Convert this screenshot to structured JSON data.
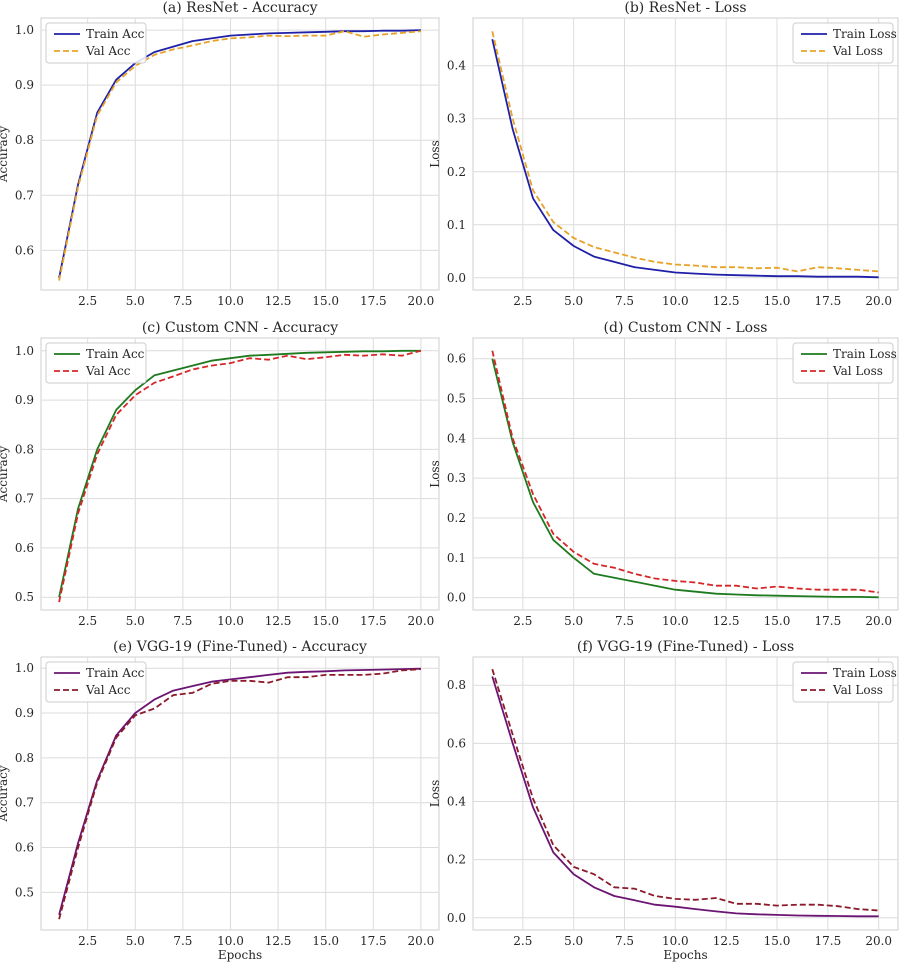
{
  "chart_data": [
    {
      "type": "line",
      "title": "(a) ResNet - Accuracy",
      "xlabel": "",
      "ylabel": "Accuracy",
      "xlim": [
        0.05,
        20.95
      ],
      "ylim": [
        0.528,
        1.022
      ],
      "xticks": [
        "2.5",
        "5.0",
        "7.5",
        "10.0",
        "12.5",
        "15.0",
        "17.5",
        "20.0"
      ],
      "yticks": [
        "0.6",
        "0.7",
        "0.8",
        "0.9",
        "1.0"
      ],
      "legend": "upper-left",
      "grid": true,
      "x": [
        1,
        2,
        3,
        4,
        5,
        6,
        7,
        8,
        9,
        10,
        11,
        12,
        13,
        14,
        15,
        16,
        17,
        18,
        19,
        20
      ],
      "series": [
        {
          "name": "Train Acc",
          "color": "#1f1fa8",
          "dash": "solid",
          "values": [
            0.55,
            0.72,
            0.85,
            0.91,
            0.94,
            0.96,
            0.97,
            0.98,
            0.985,
            0.99,
            0.992,
            0.994,
            0.995,
            0.996,
            0.997,
            0.998,
            0.998,
            0.999,
            0.999,
            1.0
          ]
        },
        {
          "name": "Val Acc",
          "color": "#e8a227",
          "dash": "dashed",
          "values": [
            0.545,
            0.715,
            0.845,
            0.905,
            0.935,
            0.955,
            0.965,
            0.972,
            0.98,
            0.985,
            0.987,
            0.99,
            0.989,
            0.99,
            0.99,
            0.998,
            0.988,
            0.992,
            0.995,
            0.998
          ]
        }
      ]
    },
    {
      "type": "line",
      "title": "(b) ResNet - Loss",
      "xlabel": "",
      "ylabel": "Loss",
      "xlim": [
        0.05,
        20.95
      ],
      "ylim": [
        -0.023,
        0.49
      ],
      "xticks": [
        "2.5",
        "5.0",
        "7.5",
        "10.0",
        "12.5",
        "15.0",
        "17.5",
        "20.0"
      ],
      "yticks": [
        "0.0",
        "0.1",
        "0.2",
        "0.3",
        "0.4"
      ],
      "legend": "upper-right",
      "grid": true,
      "x": [
        1,
        2,
        3,
        4,
        5,
        6,
        7,
        8,
        9,
        10,
        11,
        12,
        13,
        14,
        15,
        16,
        17,
        18,
        19,
        20
      ],
      "series": [
        {
          "name": "Train Loss",
          "color": "#1f1fa8",
          "dash": "solid",
          "values": [
            0.45,
            0.28,
            0.15,
            0.09,
            0.06,
            0.04,
            0.03,
            0.02,
            0.015,
            0.01,
            0.008,
            0.006,
            0.005,
            0.004,
            0.003,
            0.003,
            0.002,
            0.002,
            0.002,
            0.001
          ]
        },
        {
          "name": "Val Loss",
          "color": "#e8a227",
          "dash": "dashed",
          "values": [
            0.465,
            0.3,
            0.165,
            0.105,
            0.075,
            0.058,
            0.048,
            0.038,
            0.03,
            0.025,
            0.023,
            0.02,
            0.02,
            0.018,
            0.019,
            0.012,
            0.02,
            0.018,
            0.015,
            0.012
          ]
        }
      ]
    },
    {
      "type": "line",
      "title": "(c) Custom CNN - Accuracy",
      "xlabel": "",
      "ylabel": "Accuracy",
      "xlim": [
        0.05,
        20.95
      ],
      "ylim": [
        0.474,
        1.026
      ],
      "xticks": [
        "2.5",
        "5.0",
        "7.5",
        "10.0",
        "12.5",
        "15.0",
        "17.5",
        "20.0"
      ],
      "yticks": [
        "0.5",
        "0.6",
        "0.7",
        "0.8",
        "0.9",
        "1.0"
      ],
      "legend": "upper-left",
      "grid": true,
      "x": [
        1,
        2,
        3,
        4,
        5,
        6,
        7,
        8,
        9,
        10,
        11,
        12,
        13,
        14,
        15,
        16,
        17,
        18,
        19,
        20
      ],
      "series": [
        {
          "name": "Train Acc",
          "color": "#1e7a1e",
          "dash": "solid",
          "values": [
            0.5,
            0.68,
            0.8,
            0.88,
            0.92,
            0.95,
            0.96,
            0.97,
            0.98,
            0.985,
            0.99,
            0.992,
            0.994,
            0.996,
            0.997,
            0.998,
            0.999,
            0.999,
            1.0,
            1.0
          ]
        },
        {
          "name": "Val Acc",
          "color": "#d62728",
          "dash": "dashed",
          "values": [
            0.49,
            0.67,
            0.79,
            0.87,
            0.91,
            0.935,
            0.948,
            0.962,
            0.97,
            0.975,
            0.985,
            0.982,
            0.99,
            0.983,
            0.987,
            0.992,
            0.99,
            0.993,
            0.99,
            1.0
          ]
        }
      ]
    },
    {
      "type": "line",
      "title": "(d) Custom CNN - Loss",
      "xlabel": "",
      "ylabel": "Loss",
      "xlim": [
        0.05,
        20.95
      ],
      "ylim": [
        -0.031,
        0.652
      ],
      "xticks": [
        "2.5",
        "5.0",
        "7.5",
        "10.0",
        "12.5",
        "15.0",
        "17.5",
        "20.0"
      ],
      "yticks": [
        "0.0",
        "0.1",
        "0.2",
        "0.3",
        "0.4",
        "0.5",
        "0.6"
      ],
      "legend": "upper-right",
      "grid": true,
      "x": [
        1,
        2,
        3,
        4,
        5,
        6,
        7,
        8,
        9,
        10,
        11,
        12,
        13,
        14,
        15,
        16,
        17,
        18,
        19,
        20
      ],
      "series": [
        {
          "name": "Train Loss",
          "color": "#1e7a1e",
          "dash": "solid",
          "values": [
            0.6,
            0.39,
            0.24,
            0.145,
            0.1,
            0.06,
            0.05,
            0.04,
            0.03,
            0.02,
            0.015,
            0.01,
            0.008,
            0.006,
            0.005,
            0.004,
            0.003,
            0.002,
            0.002,
            0.001
          ]
        },
        {
          "name": "Val Loss",
          "color": "#d62728",
          "dash": "dashed",
          "values": [
            0.62,
            0.4,
            0.26,
            0.16,
            0.115,
            0.085,
            0.075,
            0.06,
            0.048,
            0.042,
            0.038,
            0.03,
            0.03,
            0.023,
            0.028,
            0.023,
            0.02,
            0.02,
            0.02,
            0.013
          ]
        }
      ]
    },
    {
      "type": "line",
      "title": "(e) VGG-19 (Fine-Tuned) - Accuracy",
      "xlabel": "Epochs",
      "ylabel": "Accuracy",
      "xlim": [
        0.05,
        20.95
      ],
      "ylim": [
        0.416,
        1.025
      ],
      "xticks": [
        "2.5",
        "5.0",
        "7.5",
        "10.0",
        "12.5",
        "15.0",
        "17.5",
        "20.0"
      ],
      "yticks": [
        "0.5",
        "0.6",
        "0.7",
        "0.8",
        "0.9",
        "1.0"
      ],
      "legend": "upper-left",
      "grid": true,
      "x": [
        1,
        2,
        3,
        4,
        5,
        6,
        7,
        8,
        9,
        10,
        11,
        12,
        13,
        14,
        15,
        16,
        17,
        18,
        19,
        20
      ],
      "series": [
        {
          "name": "Train Acc",
          "color": "#6b1473",
          "dash": "solid",
          "values": [
            0.45,
            0.61,
            0.75,
            0.85,
            0.9,
            0.93,
            0.95,
            0.96,
            0.97,
            0.975,
            0.98,
            0.985,
            0.99,
            0.992,
            0.993,
            0.995,
            0.996,
            0.997,
            0.998,
            0.999
          ]
        },
        {
          "name": "Val Acc",
          "color": "#8b1a2b",
          "dash": "dashed",
          "values": [
            0.44,
            0.6,
            0.745,
            0.845,
            0.895,
            0.91,
            0.94,
            0.945,
            0.965,
            0.972,
            0.972,
            0.968,
            0.98,
            0.98,
            0.985,
            0.985,
            0.985,
            0.988,
            0.995,
            0.998
          ]
        }
      ]
    },
    {
      "type": "line",
      "title": "(f) VGG-19 (Fine-Tuned) - Loss",
      "xlabel": "Epochs",
      "ylabel": "Loss",
      "xlim": [
        0.05,
        20.95
      ],
      "ylim": [
        -0.042,
        0.897
      ],
      "xticks": [
        "2.5",
        "5.0",
        "7.5",
        "10.0",
        "12.5",
        "15.0",
        "17.5",
        "20.0"
      ],
      "yticks": [
        "0.0",
        "0.2",
        "0.4",
        "0.6",
        "0.8"
      ],
      "legend": "upper-right",
      "grid": true,
      "x": [
        1,
        2,
        3,
        4,
        5,
        6,
        7,
        8,
        9,
        10,
        11,
        12,
        13,
        14,
        15,
        16,
        17,
        18,
        19,
        20
      ],
      "series": [
        {
          "name": "Train Loss",
          "color": "#6b1473",
          "dash": "solid",
          "values": [
            0.83,
            0.6,
            0.38,
            0.225,
            0.15,
            0.105,
            0.075,
            0.06,
            0.045,
            0.038,
            0.03,
            0.022,
            0.015,
            0.012,
            0.01,
            0.008,
            0.007,
            0.006,
            0.005,
            0.005
          ]
        },
        {
          "name": "Val Loss",
          "color": "#8b1a2b",
          "dash": "dashed",
          "values": [
            0.855,
            0.63,
            0.41,
            0.25,
            0.175,
            0.15,
            0.105,
            0.1,
            0.075,
            0.065,
            0.062,
            0.068,
            0.048,
            0.048,
            0.042,
            0.045,
            0.045,
            0.04,
            0.03,
            0.025
          ]
        }
      ]
    }
  ]
}
